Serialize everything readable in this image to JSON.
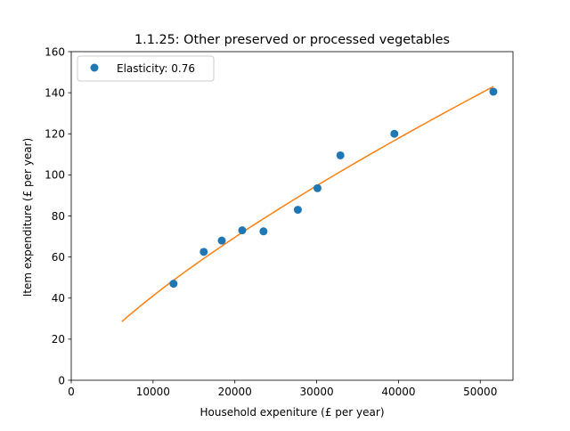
{
  "chart_data": {
    "type": "scatter",
    "title": "1.1.25: Other preserved or processed vegetables",
    "xlabel": "Household expeniture (£ per year)",
    "ylabel": "Item expenditure (£ per year)",
    "xlim": [
      0,
      54000
    ],
    "ylim": [
      0,
      160
    ],
    "xticks": [
      0,
      10000,
      20000,
      30000,
      40000,
      50000
    ],
    "yticks": [
      0,
      20,
      40,
      60,
      80,
      100,
      120,
      140,
      160
    ],
    "grid": false,
    "legend_position": "upper-left",
    "series": [
      {
        "name": "Elasticity: 0.76",
        "kind": "points",
        "color": "#1f77b4",
        "x": [
          12500,
          16200,
          18400,
          20900,
          23500,
          27700,
          30100,
          32900,
          39500,
          51600
        ],
        "y": [
          47,
          62.5,
          68,
          73,
          72.5,
          83,
          93.5,
          109.5,
          120,
          140.5
        ]
      },
      {
        "kind": "fit",
        "color": "#ff7f0e",
        "elasticity": 0.76,
        "x_range": [
          6200,
          51600
        ],
        "y_at_end": 143
      }
    ]
  }
}
